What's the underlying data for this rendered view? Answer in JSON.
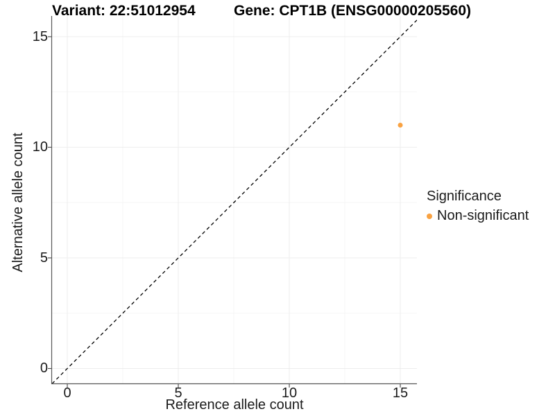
{
  "chart_data": {
    "type": "scatter",
    "title_left": "Variant: 22:51012954",
    "title_right": "Gene: CPT1B (ENSG00000205560)",
    "xlabel": "Reference allele count",
    "ylabel": "Alternative allele count",
    "xlim": [
      -0.6875,
      15.75
    ],
    "ylim": [
      -0.674,
      15.937
    ],
    "x_ticks": [
      0,
      5,
      10,
      15
    ],
    "y_ticks": [
      0,
      5,
      10,
      15
    ],
    "x_minor_gridlines": [
      2.5,
      7.5,
      12.5
    ],
    "y_minor_gridlines": [
      2.5,
      7.5,
      12.5
    ],
    "grid": true,
    "legend_position": "right",
    "legend_title": "Significance",
    "reference_line": {
      "equation": "y = x",
      "style": "dashed",
      "color": "#000000"
    },
    "series": [
      {
        "name": "Non-significant",
        "color": "#F9A242",
        "points": [
          {
            "x": 15,
            "y": 11
          }
        ]
      }
    ]
  },
  "colors": {
    "background": "#FFFFFF",
    "major_gridline": "#EDEDED",
    "minor_gridline": "#F6F6F6",
    "axis_line": "#555555",
    "tick_text": "#1A1A1A",
    "title_text": "#000000"
  }
}
